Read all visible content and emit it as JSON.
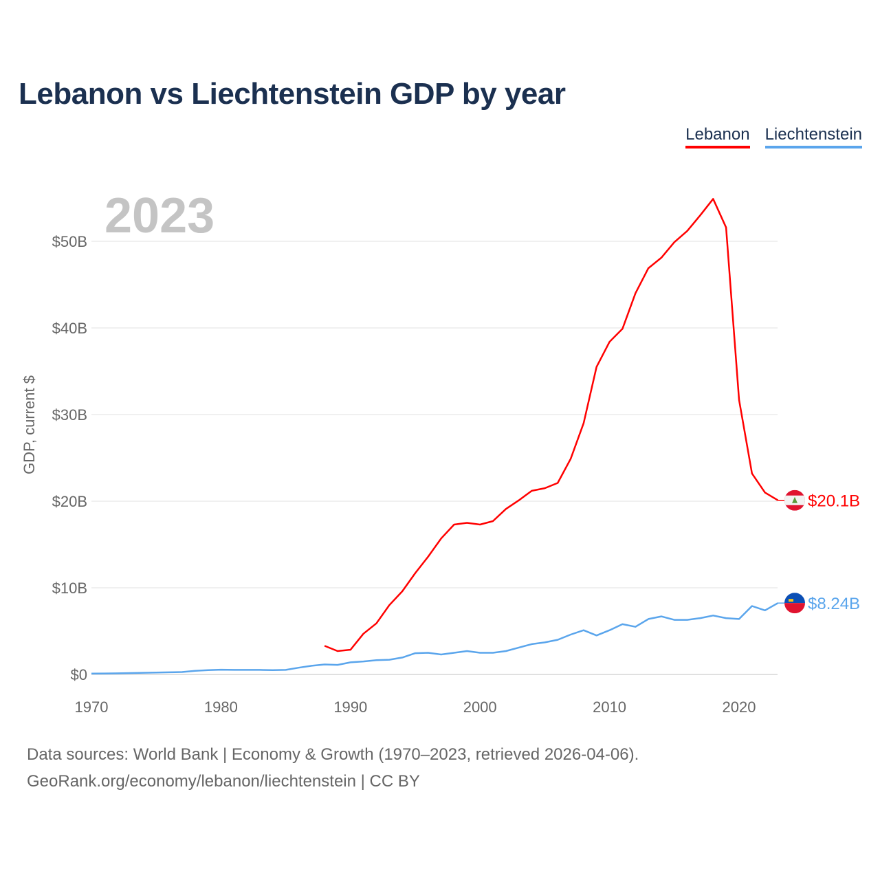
{
  "title": "Lebanon vs Liechtenstein GDP by year",
  "legend": [
    "Lebanon",
    "Liechtenstein"
  ],
  "footer": {
    "line1": "Data sources: World Bank | Economy & Growth (1970–2023, retrieved 2026-04-06).",
    "line2": "GeoRank.org/economy/lebanon/liechtenstein | CC BY"
  },
  "chart_data": {
    "type": "line",
    "title": "Lebanon vs Liechtenstein GDP by year",
    "year_label": "2023",
    "xlabel": "",
    "ylabel": "GDP, current $",
    "xlim": [
      1970,
      2023
    ],
    "ylim": [
      0,
      55
    ],
    "x_ticks": [
      1970,
      1980,
      1990,
      2000,
      2010,
      2020
    ],
    "y_ticks": [
      0,
      10,
      20,
      30,
      40,
      50
    ],
    "y_tick_labels": [
      "$0",
      "$10B",
      "$20B",
      "$30B",
      "$40B",
      "$50B"
    ],
    "grid": true,
    "legend_position": "top-right",
    "series": [
      {
        "name": "Lebanon",
        "color": "#ff0000",
        "end_label": "$20.1B",
        "flag": "lebanon-flag",
        "x": [
          1988,
          1989,
          1990,
          1991,
          1992,
          1993,
          1994,
          1995,
          1996,
          1997,
          1998,
          1999,
          2000,
          2001,
          2002,
          2003,
          2004,
          2005,
          2006,
          2007,
          2008,
          2009,
          2010,
          2011,
          2012,
          2013,
          2014,
          2015,
          2016,
          2017,
          2018,
          2019,
          2020,
          2021,
          2022,
          2023
        ],
        "values": [
          3.3,
          2.7,
          2.85,
          4.7,
          5.9,
          8.0,
          9.6,
          11.7,
          13.6,
          15.7,
          17.3,
          17.5,
          17.3,
          17.7,
          19.1,
          20.1,
          21.2,
          21.5,
          22.1,
          24.9,
          29.0,
          35.5,
          38.4,
          39.9,
          44.0,
          46.9,
          48.1,
          49.9,
          51.2,
          53.0,
          54.9,
          51.6,
          31.7,
          23.2,
          21.0,
          20.1
        ]
      },
      {
        "name": "Liechtenstein",
        "color": "#5aa5ec",
        "end_label": "$8.24B",
        "flag": "liechtenstein-flag",
        "x": [
          1970,
          1971,
          1972,
          1973,
          1974,
          1975,
          1976,
          1977,
          1978,
          1979,
          1980,
          1981,
          1982,
          1983,
          1984,
          1985,
          1986,
          1987,
          1988,
          1989,
          1990,
          1991,
          1992,
          1993,
          1994,
          1995,
          1996,
          1997,
          1998,
          1999,
          2000,
          2001,
          2002,
          2003,
          2004,
          2005,
          2006,
          2007,
          2008,
          2009,
          2010,
          2011,
          2012,
          2013,
          2014,
          2015,
          2016,
          2017,
          2018,
          2019,
          2020,
          2021,
          2022,
          2023
        ],
        "values": [
          0.1,
          0.11,
          0.13,
          0.16,
          0.19,
          0.22,
          0.25,
          0.28,
          0.42,
          0.5,
          0.55,
          0.52,
          0.52,
          0.52,
          0.5,
          0.52,
          0.78,
          1.0,
          1.15,
          1.1,
          1.4,
          1.5,
          1.65,
          1.7,
          1.95,
          2.45,
          2.5,
          2.3,
          2.5,
          2.7,
          2.5,
          2.5,
          2.7,
          3.1,
          3.5,
          3.7,
          4.0,
          4.6,
          5.1,
          4.5,
          5.1,
          5.8,
          5.5,
          6.4,
          6.7,
          6.3,
          6.3,
          6.5,
          6.8,
          6.5,
          6.4,
          7.9,
          7.4,
          8.24
        ]
      }
    ]
  }
}
